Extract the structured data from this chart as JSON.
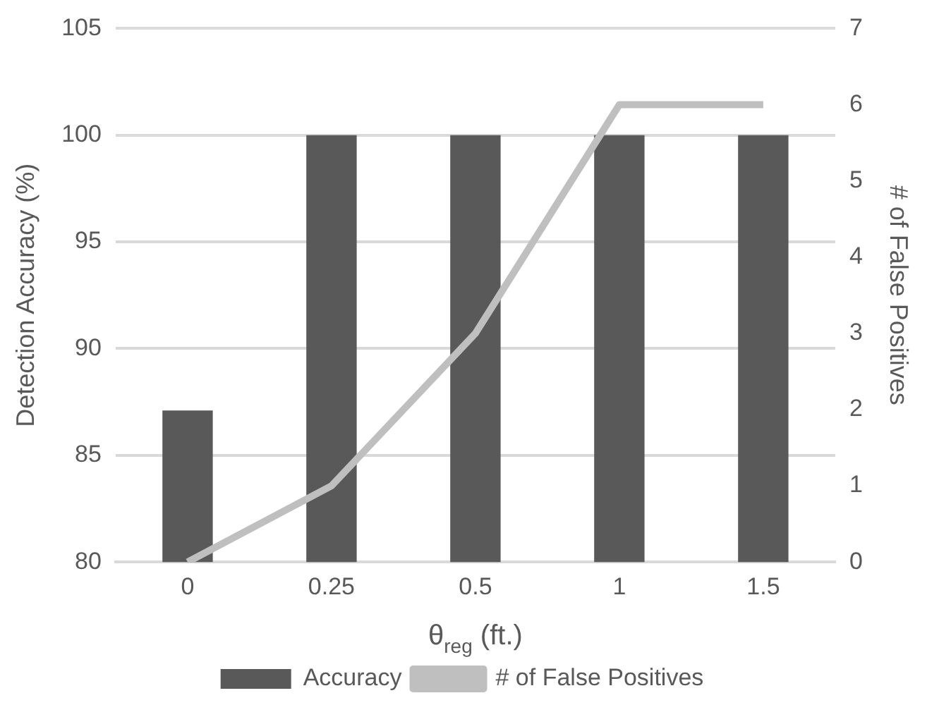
{
  "chart_data": {
    "type": "bar",
    "categories": [
      "0",
      "0.25",
      "0.5",
      "1",
      "1.5"
    ],
    "series": [
      {
        "name": "Accuracy",
        "color": "#595959",
        "values": [
          87.1,
          100,
          100,
          100,
          100
        ]
      },
      {
        "name": "# of False Positives",
        "type": "line",
        "axis": "y2",
        "color": "#bfbfbf",
        "values": [
          0,
          1,
          3,
          6,
          6
        ]
      }
    ],
    "ylabel": "Detection Accuracy (%)",
    "y2label": "# of False Positives",
    "xlabel": "θ$_{reg}$ (ft.)",
    "ylim": [
      80,
      105
    ],
    "yticks": [
      80,
      85,
      90,
      95,
      100,
      105
    ],
    "y2lim": [
      0,
      7
    ],
    "y2ticks": [
      0,
      1,
      2,
      3,
      4,
      5,
      6,
      7
    ],
    "grid": "y",
    "legend": "bottom",
    "marker": "none"
  }
}
